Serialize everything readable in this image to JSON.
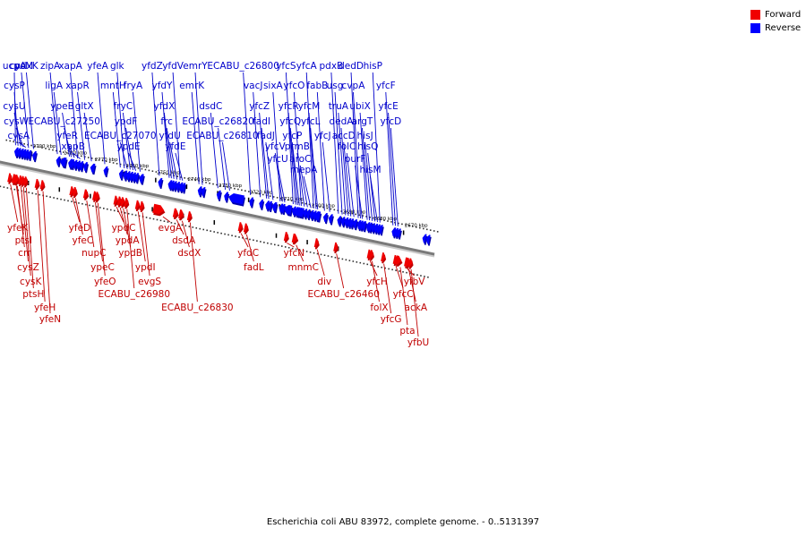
{
  "caption": "Escherichia coli ABU 83972, complete genome. - 0..5131397",
  "legend": [
    {
      "label": "Forward",
      "color": "#f00000"
    },
    {
      "label": "Reverse",
      "color": "#0000ff"
    }
  ],
  "colors": {
    "forward": "#f00000",
    "forward_shade": "#c00000",
    "reverse": "#0000ff",
    "reverse_shade": "#0000b0",
    "forward_label": "#c00000",
    "reverse_label": "#0000cc",
    "axis": "#7a7a7a",
    "leader": "#000000",
    "tick": "#000000"
  },
  "ticks": [
    {
      "label": "2790 kbp",
      "kbp": 2790
    },
    {
      "label": "2780 kbp",
      "kbp": 2780
    },
    {
      "label": "2770 kbp",
      "kbp": 2770
    },
    {
      "label": "2760 kbp",
      "kbp": 2760
    },
    {
      "label": "2750 kbp",
      "kbp": 2750
    },
    {
      "label": "2740 kbp",
      "kbp": 2740
    },
    {
      "label": "2730 kbp",
      "kbp": 2730
    },
    {
      "label": "2720 kbp",
      "kbp": 2720
    },
    {
      "label": "2710 kbp",
      "kbp": 2710
    },
    {
      "label": "2700 kbp",
      "kbp": 2700
    },
    {
      "label": "2690 kbp",
      "kbp": 2690
    },
    {
      "label": "2680 kbp",
      "kbp": 2680
    },
    {
      "label": "2670 kbp",
      "kbp": 2670
    }
  ],
  "reverse_genes": [
    {
      "name": "ucpA",
      "kbp": 2796.0,
      "len": 0.8
    },
    {
      "name": "cysP",
      "kbp": 2795.2,
      "len": 0.9
    },
    {
      "name": "cysU",
      "kbp": 2794.3,
      "len": 0.8
    },
    {
      "name": "cysW",
      "kbp": 2793.5,
      "len": 0.8
    },
    {
      "name": "cysA",
      "kbp": 2792.7,
      "len": 0.9
    },
    {
      "name": "cysM",
      "kbp": 2791.8,
      "len": 0.8
    },
    {
      "name": "pdxK",
      "kbp": 2790.2,
      "len": 0.8
    },
    {
      "name": "zipA",
      "kbp": 2782.5,
      "len": 1.0
    },
    {
      "name": "ligA",
      "kbp": 2781.3,
      "len": 2.0
    },
    {
      "name": "ypeB",
      "kbp": 2778.6,
      "len": 0.6
    },
    {
      "name": "ECABU_c27250",
      "kbp": 2778.0,
      "len": 0.6
    },
    {
      "name": "yfeR",
      "kbp": 2777.0,
      "len": 0.8
    },
    {
      "name": "xapA",
      "kbp": 2776.0,
      "len": 0.8
    },
    {
      "name": "xapB",
      "kbp": 2775.1,
      "len": 1.2
    },
    {
      "name": "xapR",
      "kbp": 2773.7,
      "len": 0.8
    },
    {
      "name": "gltX",
      "kbp": 2771.5,
      "len": 1.4
    },
    {
      "name": "yfeA",
      "kbp": 2767.2,
      "len": 1.0
    },
    {
      "name": "mntH",
      "kbp": 2762.2,
      "len": 1.1
    },
    {
      "name": "glk",
      "kbp": 2760.9,
      "len": 0.9
    },
    {
      "name": "ECABU_c27070",
      "kbp": 2759.9,
      "len": 0.8
    },
    {
      "name": "fryC",
      "kbp": 2759.0,
      "len": 0.8
    },
    {
      "name": "ypdF",
      "kbp": 2758.1,
      "len": 0.8
    },
    {
      "name": "ypdE",
      "kbp": 2757.2,
      "len": 0.8
    },
    {
      "name": "fryA",
      "kbp": 2755.8,
      "len": 1.4
    },
    {
      "name": "yfdZ",
      "kbp": 2749.6,
      "len": 0.8
    },
    {
      "name": "yfdY",
      "kbp": 2746.4,
      "len": 0.6
    },
    {
      "name": "yfdX",
      "kbp": 2745.7,
      "len": 0.6
    },
    {
      "name": "frc",
      "kbp": 2744.9,
      "len": 0.9
    },
    {
      "name": "yfdU",
      "kbp": 2743.9,
      "len": 0.9
    },
    {
      "name": "yfdV",
      "kbp": 2742.9,
      "len": 0.6
    },
    {
      "name": "yfdE",
      "kbp": 2742.1,
      "len": 0.8
    },
    {
      "name": "emrK",
      "kbp": 2736.8,
      "len": 1.0
    },
    {
      "name": "emrY",
      "kbp": 2735.7,
      "len": 0.8
    },
    {
      "name": "dsdC",
      "kbp": 2730.7,
      "len": 0.7
    },
    {
      "name": "ECABU_c26820",
      "kbp": 2728.3,
      "len": 0.5
    },
    {
      "name": "ECABU_c26810",
      "kbp": 2726.9,
      "len": 5.0
    },
    {
      "name": "ECABU_c26800",
      "kbp": 2720.2,
      "len": 0.4
    },
    {
      "name": "vacJ",
      "kbp": 2717.0,
      "len": 0.6
    },
    {
      "name": "yfcZ",
      "kbp": 2715.0,
      "len": 0.6
    },
    {
      "name": "fadI",
      "kbp": 2714.3,
      "len": 1.3
    },
    {
      "name": "fadJ",
      "kbp": 2712.9,
      "len": 1.5
    },
    {
      "name": "sixA",
      "kbp": 2710.6,
      "len": 0.4
    },
    {
      "name": "yfcV",
      "kbp": 2709.9,
      "len": 0.7
    },
    {
      "name": "yfcU",
      "kbp": 2709.1,
      "len": 2.6
    },
    {
      "name": "yfcS",
      "kbp": 2706.4,
      "len": 0.7
    },
    {
      "name": "yfcR",
      "kbp": 2705.6,
      "len": 0.5
    },
    {
      "name": "yfcQ",
      "kbp": 2705.0,
      "len": 0.5
    },
    {
      "name": "yfcP",
      "kbp": 2704.4,
      "len": 0.5
    },
    {
      "name": "yfcO",
      "kbp": 2703.8,
      "len": 0.8
    },
    {
      "name": "prmB",
      "kbp": 2702.8,
      "len": 0.9
    },
    {
      "name": "aroC",
      "kbp": 2701.8,
      "len": 1.0
    },
    {
      "name": "mepA",
      "kbp": 2700.7,
      "len": 0.8
    },
    {
      "name": "yfcA",
      "kbp": 2699.8,
      "len": 0.7
    },
    {
      "name": "yfcM",
      "kbp": 2699.0,
      "len": 0.4
    },
    {
      "name": "yfcL",
      "kbp": 2698.5,
      "len": 0.4
    },
    {
      "name": "fabB",
      "kbp": 2696.3,
      "len": 1.2
    },
    {
      "name": "yfcJ",
      "kbp": 2694.6,
      "len": 1.2
    },
    {
      "name": "pdxB",
      "kbp": 2691.8,
      "len": 1.1
    },
    {
      "name": "usg",
      "kbp": 2690.6,
      "len": 1.0
    },
    {
      "name": "truA",
      "kbp": 2689.5,
      "len": 0.8
    },
    {
      "name": "dedA",
      "kbp": 2688.6,
      "len": 0.7
    },
    {
      "name": "accD",
      "kbp": 2687.8,
      "len": 0.9
    },
    {
      "name": "folC",
      "kbp": 2686.8,
      "len": 1.3
    },
    {
      "name": "dedD",
      "kbp": 2685.4,
      "len": 0.6
    },
    {
      "name": "cvpA",
      "kbp": 2684.7,
      "len": 0.5
    },
    {
      "name": "purF",
      "kbp": 2684.1,
      "len": 1.5
    },
    {
      "name": "ubiX",
      "kbp": 2682.5,
      "len": 0.6
    },
    {
      "name": "argT",
      "kbp": 2681.8,
      "len": 0.8
    },
    {
      "name": "hisJ",
      "kbp": 2680.9,
      "len": 0.8
    },
    {
      "name": "hisQ",
      "kbp": 2680.0,
      "len": 0.7
    },
    {
      "name": "hisM",
      "kbp": 2679.2,
      "len": 0.7
    },
    {
      "name": "hisP",
      "kbp": 2678.4,
      "len": 0.8
    },
    {
      "name": "yfcF",
      "kbp": 2674.2,
      "len": 0.6
    },
    {
      "name": "yfcE",
      "kbp": 2673.4,
      "len": 0.6
    },
    {
      "name": "yfcD",
      "kbp": 2672.6,
      "len": 0.6
    },
    {
      "name": "",
      "kbp": 2664.3,
      "len": 1.0
    },
    {
      "name": "",
      "kbp": 2663.1,
      "len": 0.8
    }
  ],
  "forward_genes": [
    {
      "name": "yfeK",
      "kbp": 2795.0,
      "len": 0.5
    },
    {
      "name": "ptsI",
      "kbp": 2793.1,
      "len": 1.7
    },
    {
      "name": "crr",
      "kbp": 2792.8,
      "len": 0.2
    },
    {
      "name": "cysZ",
      "kbp": 2791.6,
      "len": 0.8
    },
    {
      "name": "cysK",
      "kbp": 2790.8,
      "len": 0.8
    },
    {
      "name": "ptsH",
      "kbp": 2789.9,
      "len": 0.3
    },
    {
      "name": "yfeH",
      "kbp": 2786.2,
      "len": 1.0
    },
    {
      "name": "yfeN",
      "kbp": 2784.5,
      "len": 0.7
    },
    {
      "name": "yfeD",
      "kbp": 2775.0,
      "len": 0.4
    },
    {
      "name": "yfeC",
      "kbp": 2774.0,
      "len": 0.4
    },
    {
      "name": "nupC",
      "kbp": 2770.4,
      "len": 1.3
    },
    {
      "name": "ypeC",
      "kbp": 2767.6,
      "len": 0.4
    },
    {
      "name": "yfeO",
      "kbp": 2766.8,
      "len": 1.2
    },
    {
      "name": "ypdC",
      "kbp": 2760.8,
      "len": 0.4
    },
    {
      "name": "ypdA",
      "kbp": 2759.6,
      "len": 0.8
    },
    {
      "name": "ypdB",
      "kbp": 2758.6,
      "len": 0.8
    },
    {
      "name": "ECABU_c26980",
      "kbp": 2757.4,
      "len": 1.0
    },
    {
      "name": "ypdI",
      "kbp": 2753.8,
      "len": 0.4
    },
    {
      "name": "evgS",
      "kbp": 2752.4,
      "len": 1.0
    },
    {
      "name": "evgA",
      "kbp": 2745.8,
      "len": 3.6
    },
    {
      "name": "dsdA",
      "kbp": 2741.4,
      "len": 1.4
    },
    {
      "name": "dsdX",
      "kbp": 2739.6,
      "len": 1.4
    },
    {
      "name": "ECABU_c26830",
      "kbp": 2737.0,
      "len": 0.4
    },
    {
      "name": "yfdC",
      "kbp": 2720.6,
      "len": 0.8
    },
    {
      "name": "fadL",
      "kbp": 2718.8,
      "len": 0.8
    },
    {
      "name": "yfcN",
      "kbp": 2705.8,
      "len": 0.4
    },
    {
      "name": "mnmC",
      "kbp": 2702.8,
      "len": 1.6
    },
    {
      "name": "div",
      "kbp": 2696.0,
      "len": 0.6
    },
    {
      "name": "ECABU_c26460",
      "kbp": 2689.8,
      "len": 0.3
    },
    {
      "name": "yfcH",
      "kbp": 2679.0,
      "len": 0.4
    },
    {
      "name": "folX",
      "kbp": 2678.3,
      "len": 0.4
    },
    {
      "name": "yfcG",
      "kbp": 2674.5,
      "len": 0.4
    },
    {
      "name": "yfcC",
      "kbp": 2670.6,
      "len": 1.0
    },
    {
      "name": "pta",
      "kbp": 2669.2,
      "len": 1.9
    },
    {
      "name": "yfbV",
      "kbp": 2667.0,
      "len": 0.4
    },
    {
      "name": "ackA",
      "kbp": 2666.5,
      "len": 1.1
    },
    {
      "name": "yfbU",
      "kbp": 2665.7,
      "len": 0.4
    }
  ]
}
